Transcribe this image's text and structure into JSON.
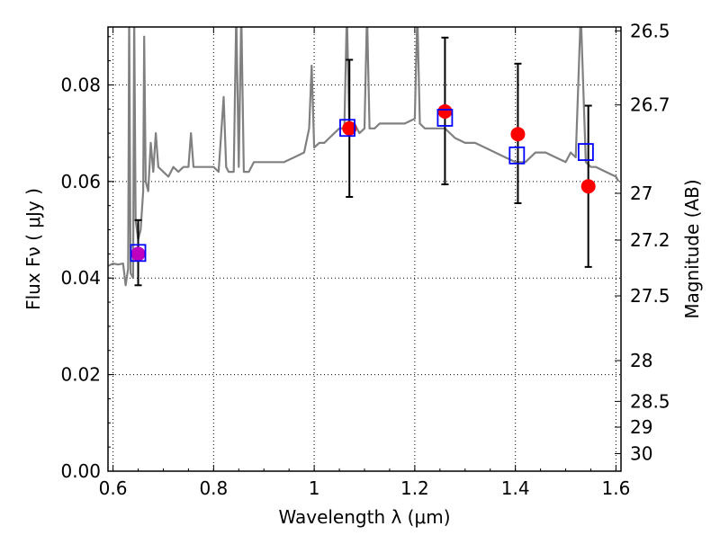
{
  "chart_data": {
    "type": "scatter",
    "xlabel": "Wavelength  λ (μm)",
    "ylabel": "Flux  Fν  ( μJy )",
    "y2label": "Magnitude (AB)",
    "xlim": [
      0.59,
      1.61
    ],
    "ylim": [
      0.0,
      0.092
    ],
    "grid": true,
    "x_ticks": [
      0.6,
      0.8,
      1.0,
      1.2,
      1.4,
      1.6
    ],
    "x_tick_labels": [
      "0.6",
      "0.8",
      "1",
      "1.2",
      "1.4",
      "1.6"
    ],
    "y_ticks": [
      0.0,
      0.02,
      0.04,
      0.06,
      0.08
    ],
    "y_tick_labels": [
      "0.00",
      "0.02",
      "0.04",
      "0.06",
      "0.08"
    ],
    "y2_ticks": [
      26.5,
      26.7,
      27,
      27.2,
      27.5,
      28,
      28.5,
      29,
      30
    ],
    "y2_tick_labels": [
      "26.5",
      "26.7",
      "27",
      "27.2",
      "27.5",
      "28",
      "28.5",
      "29",
      "30"
    ],
    "colors": {
      "model": "#808080",
      "observed": "#ff0000",
      "model_photometry": "#0000ff",
      "overlap": "#bf00bf",
      "errorbar": "#000000",
      "grid": "#000000"
    },
    "series": [
      {
        "kind": "line",
        "style": "model-spectrum",
        "x": [
          0.59,
          0.6,
          0.61,
          0.62,
          0.625,
          0.63,
          0.632,
          0.635,
          0.64,
          0.642,
          0.645,
          0.65,
          0.655,
          0.66,
          0.662,
          0.665,
          0.67,
          0.675,
          0.68,
          0.685,
          0.69,
          0.7,
          0.71,
          0.72,
          0.73,
          0.74,
          0.75,
          0.755,
          0.76,
          0.77,
          0.78,
          0.79,
          0.8,
          0.81,
          0.82,
          0.825,
          0.83,
          0.84,
          0.845,
          0.85,
          0.855,
          0.86,
          0.87,
          0.88,
          0.9,
          0.92,
          0.94,
          0.96,
          0.98,
          0.99,
          0.995,
          1.0,
          1.01,
          1.02,
          1.03,
          1.04,
          1.05,
          1.06,
          1.065,
          1.07,
          1.08,
          1.09,
          1.1,
          1.105,
          1.11,
          1.12,
          1.13,
          1.14,
          1.16,
          1.18,
          1.2,
          1.205,
          1.21,
          1.22,
          1.24,
          1.26,
          1.28,
          1.3,
          1.32,
          1.34,
          1.36,
          1.38,
          1.4,
          1.42,
          1.44,
          1.46,
          1.48,
          1.5,
          1.51,
          1.52,
          1.53,
          1.54,
          1.55,
          1.56,
          1.58,
          1.6,
          1.605
        ],
        "y": [
          0.0425,
          0.043,
          0.0428,
          0.043,
          0.0385,
          0.042,
          0.095,
          0.041,
          0.04,
          0.095,
          0.052,
          0.048,
          0.05,
          0.058,
          0.09,
          0.06,
          0.058,
          0.068,
          0.062,
          0.07,
          0.063,
          0.062,
          0.061,
          0.063,
          0.062,
          0.063,
          0.063,
          0.07,
          0.063,
          0.063,
          0.063,
          0.063,
          0.063,
          0.062,
          0.0775,
          0.063,
          0.062,
          0.062,
          0.095,
          0.063,
          0.095,
          0.062,
          0.062,
          0.064,
          0.064,
          0.064,
          0.064,
          0.065,
          0.066,
          0.071,
          0.084,
          0.067,
          0.068,
          0.068,
          0.069,
          0.07,
          0.071,
          0.071,
          0.095,
          0.071,
          0.072,
          0.07,
          0.071,
          0.095,
          0.071,
          0.071,
          0.072,
          0.072,
          0.072,
          0.072,
          0.073,
          0.095,
          0.072,
          0.071,
          0.071,
          0.071,
          0.069,
          0.068,
          0.068,
          0.067,
          0.066,
          0.065,
          0.064,
          0.064,
          0.066,
          0.066,
          0.065,
          0.064,
          0.066,
          0.065,
          0.095,
          0.064,
          0.063,
          0.063,
          0.062,
          0.061,
          0.06
        ]
      },
      {
        "kind": "scatter",
        "style": "observed",
        "marker": "filled-circle",
        "x": [
          0.65,
          1.07,
          1.26,
          1.405,
          1.545
        ],
        "y": [
          0.045,
          0.071,
          0.0745,
          0.0698,
          0.059
        ],
        "yerr_lower": [
          0.0065,
          0.0142,
          0.0151,
          0.0143,
          0.0167
        ],
        "yerr_upper": [
          0.007,
          0.0142,
          0.0153,
          0.0146,
          0.0167
        ]
      },
      {
        "kind": "scatter",
        "style": "model-photometry",
        "marker": "open-square",
        "x": [
          0.65,
          1.066,
          1.26,
          1.403,
          1.54
        ],
        "y": [
          0.0452,
          0.0711,
          0.0732,
          0.0654,
          0.0661
        ]
      }
    ]
  }
}
